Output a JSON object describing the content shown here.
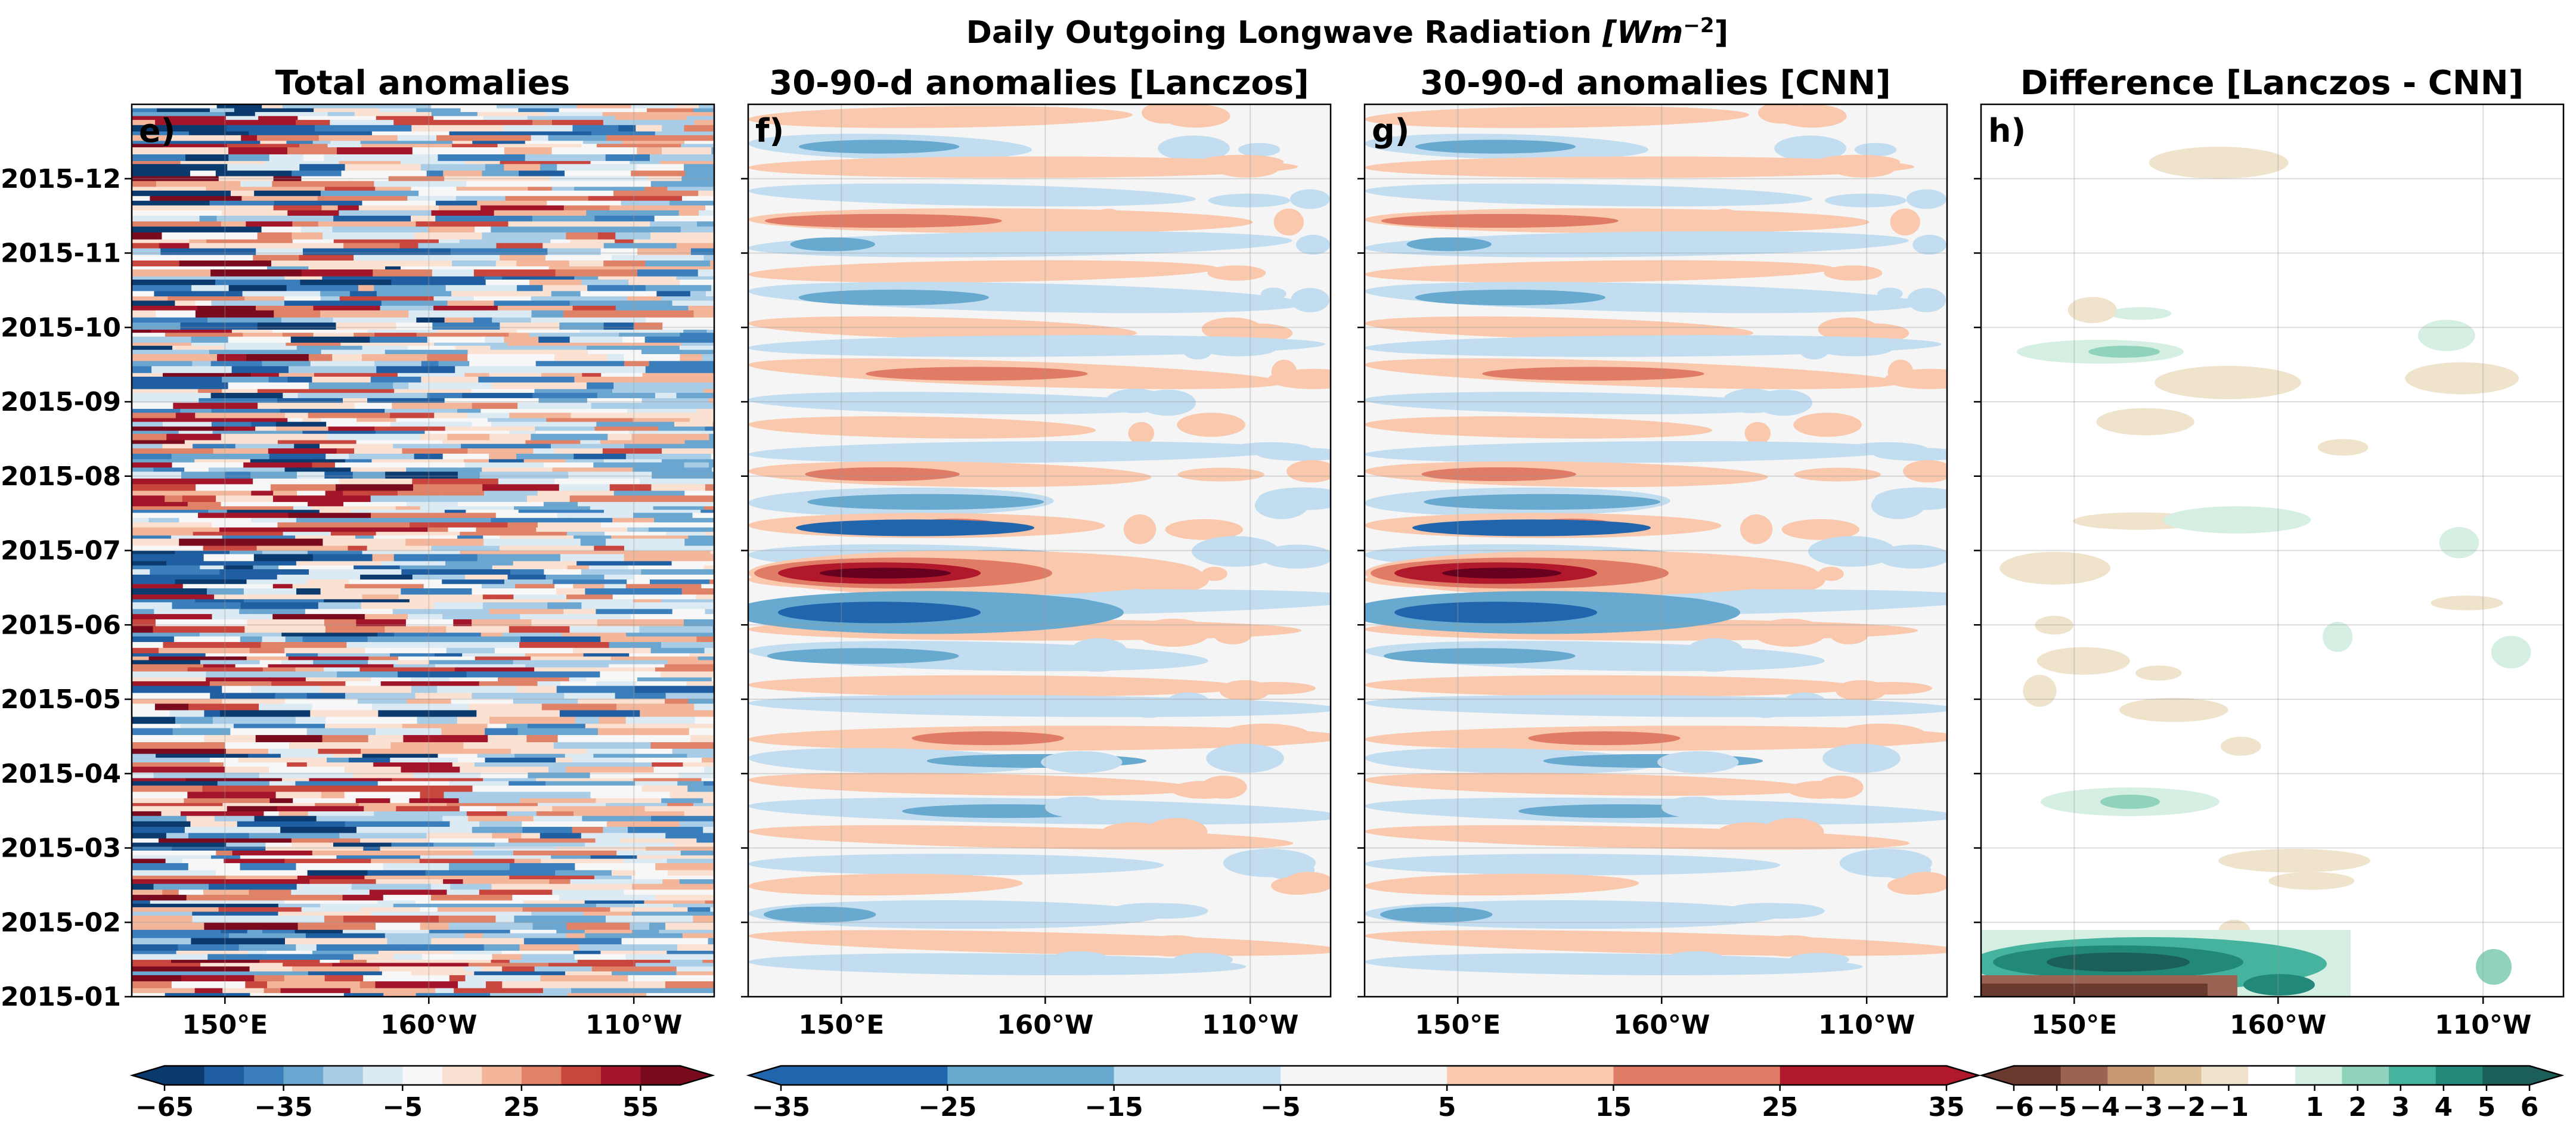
{
  "figure": {
    "title": "Daily Outgoing Longwave Radiation [Wm⁻²]",
    "title_main": "Daily Outgoing Longwave Radiation ",
    "title_unit": "[Wm",
    "title_exp": "−2",
    "title_close": "]"
  },
  "chart_data": [
    {
      "type": "heatmap",
      "panel_label": "e)",
      "title": "Total anomalies",
      "x_tick_labels": [
        "150°E",
        "160°W",
        "110°W"
      ],
      "y_tick_labels": [
        "2015-01",
        "2015-02",
        "2015-03",
        "2015-04",
        "2015-05",
        "2015-06",
        "2015-07",
        "2015-08",
        "2015-09",
        "2015-10",
        "2015-11",
        "2015-12"
      ],
      "grid": true,
      "colorbar": {
        "ticks": [
          "−65",
          "−35",
          "−5",
          "25",
          "55"
        ],
        "levels": [
          -65,
          -55,
          -45,
          -35,
          -25,
          -15,
          -5,
          5,
          15,
          25,
          35,
          45,
          55,
          65
        ],
        "colors": [
          "#0b3a6f",
          "#1f5fa1",
          "#3a7fbc",
          "#6aa6d0",
          "#a9cde6",
          "#dbeaf3",
          "#f7f7f7",
          "#fbe1d1",
          "#f3b69a",
          "#e08268",
          "#c9463f",
          "#a3162a",
          "#7a0a1d"
        ],
        "extend": "both"
      }
    },
    {
      "type": "heatmap",
      "panel_label": "f)",
      "title": "30-90-d anomalies [Lanczos]",
      "x_tick_labels": [
        "150°E",
        "160°W",
        "110°W"
      ],
      "grid": true,
      "colorbar": {
        "ticks": [
          "−35",
          "−25",
          "−15",
          "−5",
          "5",
          "15",
          "25",
          "35"
        ],
        "levels": [
          -35,
          -25,
          -15,
          -5,
          5,
          15,
          25,
          35
        ],
        "colors": [
          "#2166ac",
          "#67a9cf",
          "#c2ddf0",
          "#f5f5f5",
          "#f9c8ad",
          "#e07b66",
          "#b2182b"
        ],
        "extend": "both"
      }
    },
    {
      "type": "heatmap",
      "panel_label": "g)",
      "title": "30-90-d anomalies [CNN]",
      "x_tick_labels": [
        "150°E",
        "160°W",
        "110°W"
      ],
      "grid": true
    },
    {
      "type": "heatmap",
      "panel_label": "h)",
      "title": "Difference [Lanczos - CNN]",
      "x_tick_labels": [
        "150°E",
        "160°W",
        "110°W"
      ],
      "grid": true,
      "colorbar": {
        "ticks": [
          "−6",
          "−5",
          "−4",
          "−3",
          "−2",
          "−1",
          "1",
          "2",
          "3",
          "4",
          "5",
          "6"
        ],
        "levels": [
          -6,
          -5,
          -4,
          -3,
          -2,
          -1,
          1,
          2,
          3,
          4,
          5,
          6
        ],
        "colors": [
          "#6b3a2f",
          "#9a6353",
          "#c89a74",
          "#dfc09a",
          "#efe3cc",
          "#ffffff",
          "#d6efe3",
          "#8fd3bd",
          "#45b39d",
          "#22897a",
          "#1b5f58"
        ],
        "extend": "both"
      }
    }
  ]
}
